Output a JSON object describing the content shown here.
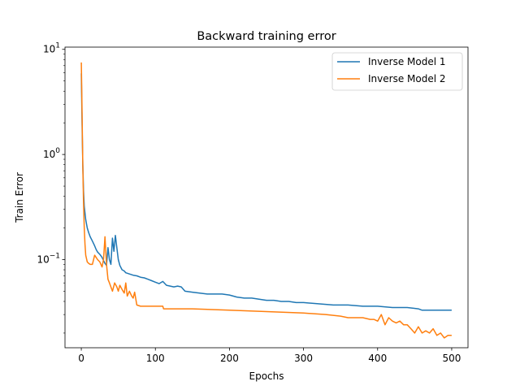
{
  "chart_data": {
    "type": "line",
    "title": "Backward training error",
    "xlabel": "Epochs",
    "ylabel": "Train Error",
    "xlim": [
      -22,
      522
    ],
    "ylim": [
      0.0145,
      10.5
    ],
    "yscale": "log",
    "grid": false,
    "legend_position": "top-right",
    "x_ticks": [
      {
        "value": 0,
        "label": "0"
      },
      {
        "value": 100,
        "label": "100"
      },
      {
        "value": 200,
        "label": "200"
      },
      {
        "value": 300,
        "label": "300"
      },
      {
        "value": 400,
        "label": "400"
      },
      {
        "value": 500,
        "label": "500"
      }
    ],
    "y_ticks": [
      {
        "value": 0.1,
        "label": "10",
        "exp": "−1"
      },
      {
        "value": 1,
        "label": "10",
        "exp": "0"
      },
      {
        "value": 10,
        "label": "10",
        "exp": "1"
      }
    ],
    "series": [
      {
        "name": "Inverse Model 1",
        "color": "#1f77b4",
        "x": [
          0,
          1,
          2,
          3,
          4,
          6,
          8,
          10,
          12,
          15,
          18,
          20,
          22,
          25,
          28,
          30,
          32,
          34,
          36,
          38,
          40,
          42,
          44,
          46,
          48,
          50,
          52,
          55,
          58,
          60,
          65,
          70,
          75,
          80,
          85,
          90,
          95,
          100,
          105,
          110,
          115,
          120,
          125,
          130,
          135,
          140,
          150,
          160,
          170,
          180,
          190,
          200,
          210,
          220,
          230,
          240,
          250,
          260,
          270,
          280,
          290,
          300,
          320,
          340,
          360,
          380,
          400,
          420,
          440,
          455,
          460,
          470,
          480,
          490,
          500
        ],
        "y": [
          5.9,
          2.0,
          0.8,
          0.45,
          0.32,
          0.24,
          0.2,
          0.18,
          0.165,
          0.15,
          0.135,
          0.125,
          0.118,
          0.112,
          0.105,
          0.098,
          0.092,
          0.088,
          0.13,
          0.1,
          0.09,
          0.16,
          0.12,
          0.17,
          0.13,
          0.1,
          0.088,
          0.08,
          0.078,
          0.075,
          0.073,
          0.071,
          0.07,
          0.068,
          0.067,
          0.065,
          0.063,
          0.061,
          0.059,
          0.062,
          0.057,
          0.056,
          0.055,
          0.056,
          0.055,
          0.05,
          0.049,
          0.048,
          0.047,
          0.047,
          0.047,
          0.046,
          0.044,
          0.043,
          0.043,
          0.042,
          0.041,
          0.041,
          0.04,
          0.04,
          0.039,
          0.039,
          0.038,
          0.037,
          0.037,
          0.036,
          0.036,
          0.035,
          0.035,
          0.034,
          0.033,
          0.033,
          0.033,
          0.033,
          0.033
        ]
      },
      {
        "name": "Inverse Model 2",
        "color": "#ff7f0e",
        "x": [
          0,
          1,
          2,
          3,
          4,
          5,
          6,
          8,
          10,
          12,
          15,
          18,
          20,
          22,
          25,
          28,
          30,
          32,
          34,
          36,
          38,
          40,
          42,
          45,
          48,
          50,
          52,
          55,
          58,
          60,
          62,
          65,
          68,
          70,
          72,
          75,
          80,
          90,
          100,
          110,
          111,
          150,
          200,
          250,
          300,
          330,
          350,
          360,
          380,
          390,
          395,
          400,
          405,
          410,
          415,
          420,
          425,
          430,
          435,
          440,
          445,
          450,
          455,
          460,
          465,
          470,
          475,
          480,
          485,
          490,
          495,
          500
        ],
        "y": [
          7.5,
          2.5,
          0.8,
          0.35,
          0.2,
          0.14,
          0.11,
          0.095,
          0.092,
          0.09,
          0.09,
          0.11,
          0.105,
          0.1,
          0.095,
          0.085,
          0.1,
          0.165,
          0.09,
          0.065,
          0.06,
          0.055,
          0.05,
          0.06,
          0.055,
          0.05,
          0.057,
          0.052,
          0.048,
          0.06,
          0.045,
          0.05,
          0.045,
          0.043,
          0.049,
          0.037,
          0.036,
          0.036,
          0.036,
          0.036,
          0.034,
          0.034,
          0.033,
          0.032,
          0.031,
          0.03,
          0.029,
          0.028,
          0.028,
          0.027,
          0.027,
          0.026,
          0.03,
          0.024,
          0.028,
          0.026,
          0.025,
          0.026,
          0.024,
          0.024,
          0.022,
          0.02,
          0.023,
          0.02,
          0.021,
          0.02,
          0.022,
          0.019,
          0.02,
          0.018,
          0.019,
          0.019
        ]
      }
    ]
  }
}
